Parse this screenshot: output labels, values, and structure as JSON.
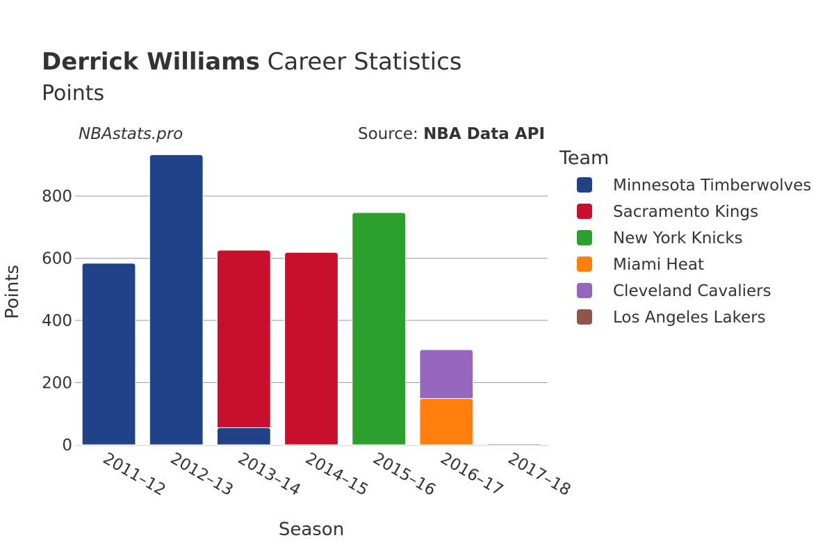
{
  "header": {
    "title_bold": "Derrick Williams",
    "title_rest": " Career Statistics",
    "subtitle": "Points",
    "watermark": "NBAstats.pro",
    "source_prefix": "Source: ",
    "source_name": "NBA Data API"
  },
  "legend": {
    "title": "Team"
  },
  "chart_data": {
    "type": "bar",
    "stacked": true,
    "xlabel": "Season",
    "ylabel": "Points",
    "ylim": [
      0,
      950
    ],
    "yticks": [
      0,
      200,
      400,
      600,
      800
    ],
    "grid": true,
    "legend_position": "right",
    "categories": [
      "2011–12",
      "2012–13",
      "2013–14",
      "2014–15",
      "2015–16",
      "2016–17",
      "2017–18"
    ],
    "series": [
      {
        "name": "Minnesota Timberwolves",
        "color": "#1f4287",
        "values": [
          584,
          933,
          55,
          0,
          0,
          0,
          0
        ]
      },
      {
        "name": "Sacramento Kings",
        "color": "#c8102e",
        "values": [
          0,
          0,
          571,
          619,
          0,
          0,
          0
        ]
      },
      {
        "name": "New York Knicks",
        "color": "#2ca02c",
        "values": [
          0,
          0,
          0,
          0,
          747,
          0,
          0
        ]
      },
      {
        "name": "Miami Heat",
        "color": "#ff7f0e",
        "values": [
          0,
          0,
          0,
          0,
          0,
          149,
          0
        ]
      },
      {
        "name": "Cleveland Cavaliers",
        "color": "#9467bd",
        "values": [
          0,
          0,
          0,
          0,
          0,
          157,
          0
        ]
      },
      {
        "name": "Los Angeles Lakers",
        "color": "#8c564b",
        "values": [
          0,
          0,
          0,
          0,
          0,
          0,
          2
        ]
      }
    ]
  }
}
